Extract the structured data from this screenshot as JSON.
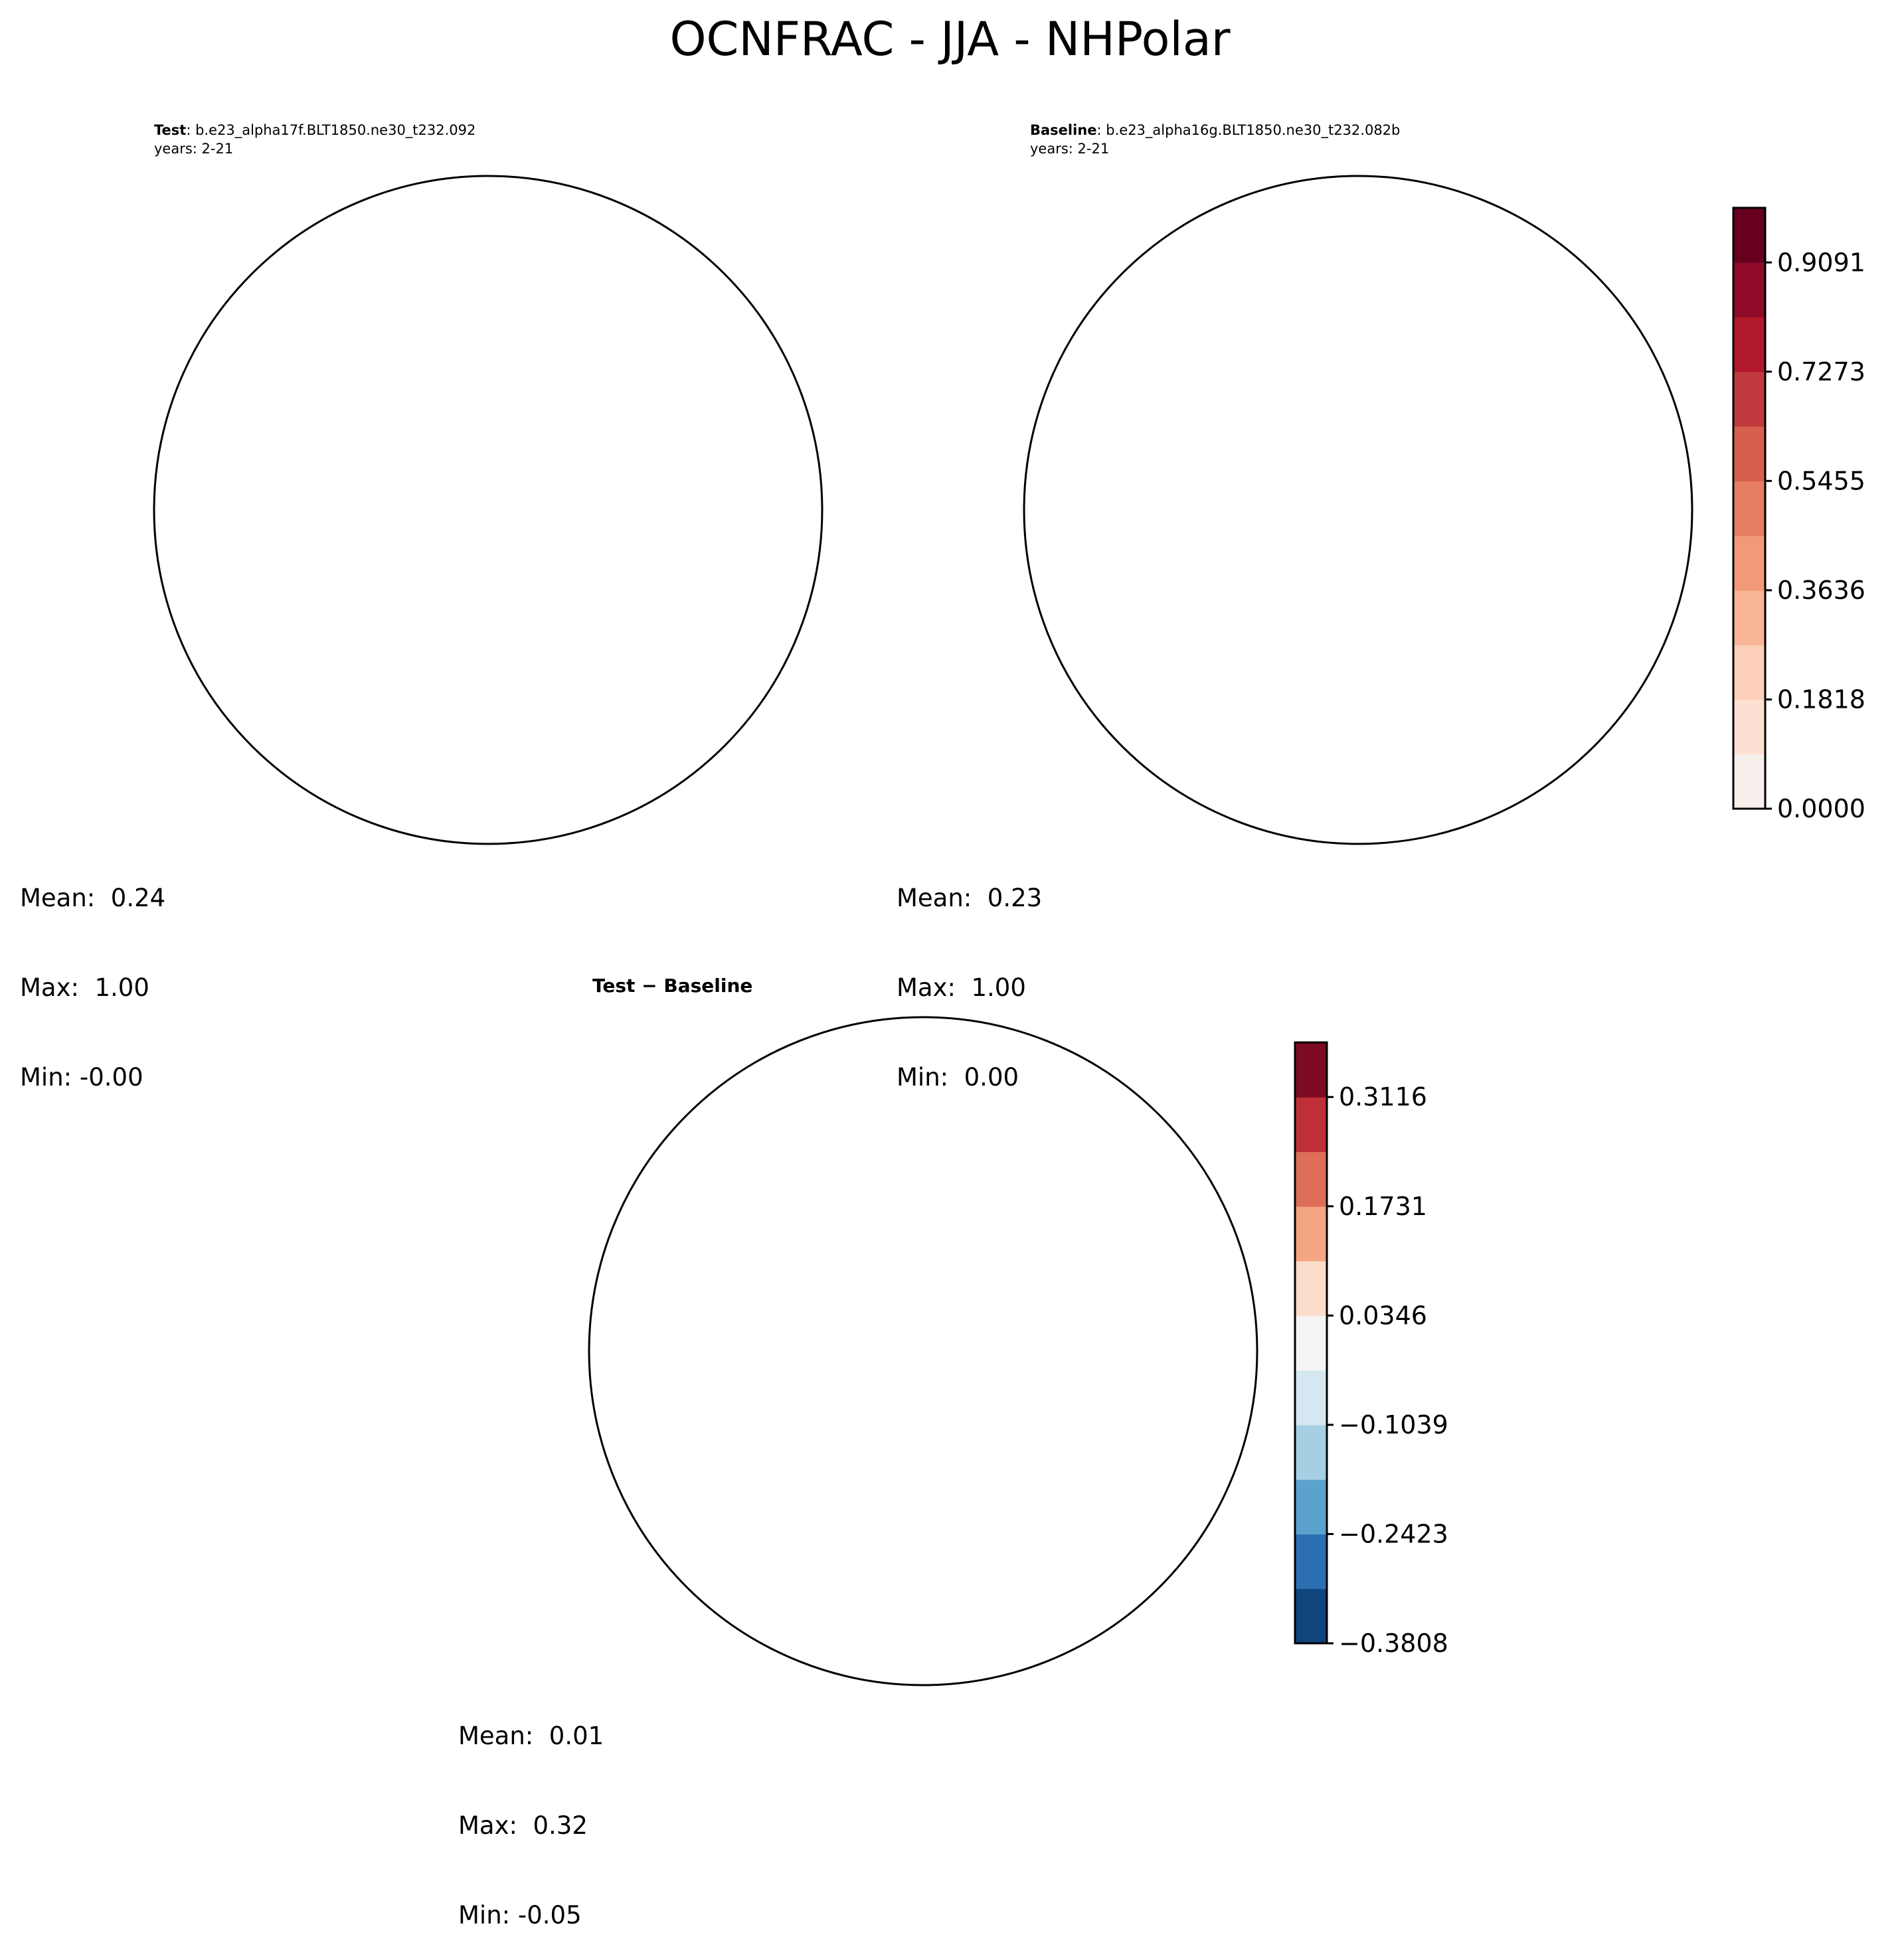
{
  "figure": {
    "title": "OCNFRAC - JJA - NHPolar"
  },
  "panels": {
    "test": {
      "label_bold": "Test",
      "label_rest": ": b.e23_alpha17f.BLT1850.ne30_t232.092",
      "years": "years: 2-21",
      "stats": {
        "mean": "Mean:  0.24",
        "max": "Max:  1.00",
        "min": "Min: -0.00"
      }
    },
    "baseline": {
      "label_bold": "Baseline",
      "label_rest": ": b.e23_alpha16g.BLT1850.ne30_t232.082b",
      "years": "years: 2-21",
      "stats": {
        "mean": "Mean:  0.23",
        "max": "Max:  1.00",
        "min": "Min:  0.00"
      }
    },
    "diff": {
      "title": "Test − Baseline",
      "stats": {
        "mean": "Mean:  0.01",
        "max": "Max:  0.32",
        "min": "Min: -0.05"
      }
    }
  },
  "colors": {
    "ocean_high": "#67001f",
    "land": "#f7efec",
    "neutral": "#f5f5f5",
    "coast": "#000000"
  },
  "chart_data": [
    {
      "type": "heatmap",
      "projection": "north-polar-stereographic",
      "panel": "test",
      "value_range": [
        0,
        1
      ],
      "mean": 0.24,
      "max": 1.0,
      "min": -0.0
    },
    {
      "type": "heatmap",
      "projection": "north-polar-stereographic",
      "panel": "baseline",
      "value_range": [
        0,
        1
      ],
      "mean": 0.23,
      "max": 1.0,
      "min": 0.0
    },
    {
      "type": "heatmap",
      "projection": "north-polar-stereographic",
      "panel": "diff",
      "mean": 0.01,
      "max": 0.32,
      "min": -0.05
    }
  ],
  "colorbars": {
    "main": {
      "tick_labels": [
        "0.0000",
        "0.1818",
        "0.3636",
        "0.5455",
        "0.7273",
        "0.9091"
      ],
      "tick_values": [
        0.0,
        0.1818,
        0.3636,
        0.5455,
        0.7273,
        0.9091
      ],
      "range": [
        0,
        1.0
      ],
      "colors": [
        "#f7efec",
        "#fde0d2",
        "#fcd0b9",
        "#f9b596",
        "#f29a77",
        "#e47d62",
        "#d6604d",
        "#c03a3d",
        "#b2182b",
        "#8e0a28",
        "#67001f"
      ]
    },
    "diff": {
      "tick_labels": [
        "−0.3808",
        "−0.2423",
        "−0.1039",
        "0.0346",
        "0.1731",
        "0.3116"
      ],
      "tick_values": [
        -0.3808,
        -0.2423,
        -0.1039,
        0.0346,
        0.1731,
        0.3116
      ],
      "range": [
        -0.3808,
        0.3808
      ],
      "colors": [
        "#0f447c",
        "#2b6fb3",
        "#5ba3cf",
        "#a6cfe4",
        "#d5e8f2",
        "#f5f5f5",
        "#fcdccb",
        "#f4a582",
        "#dd6f58",
        "#bf2f36",
        "#7c0a22"
      ]
    }
  }
}
